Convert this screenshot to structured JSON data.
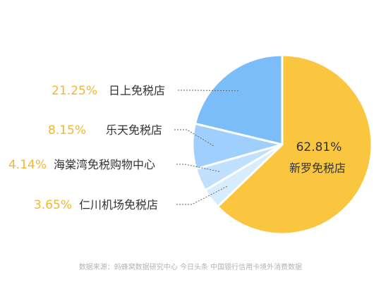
{
  "chart_data": {
    "type": "pie",
    "title": "",
    "slices": [
      {
        "label": "新罗免税店",
        "value": 62.81,
        "value_label": "62.81%",
        "color": "#FAC63F"
      },
      {
        "label": "仁川机场免税店",
        "value": 3.65,
        "value_label": "3.65%",
        "color": "#D7ECFF"
      },
      {
        "label": "海棠湾免税购物中心",
        "value": 4.14,
        "value_label": "4.14%",
        "color": "#C0E0FE"
      },
      {
        "label": "乐天免税店",
        "value": 8.15,
        "value_label": "8.15%",
        "color": "#9FCFFC"
      },
      {
        "label": "日上免税店",
        "value": 21.25,
        "value_label": "21.25%",
        "color": "#7BBDF8"
      }
    ],
    "label_color": "#333333",
    "percent_color": "#F2B632",
    "inner_label_color": "#333333",
    "leader_color": "#666666"
  },
  "source_note": "数据来源：蚂蜂窝数据研究中心 今日头条 中国银行信用卡境外消费数据"
}
